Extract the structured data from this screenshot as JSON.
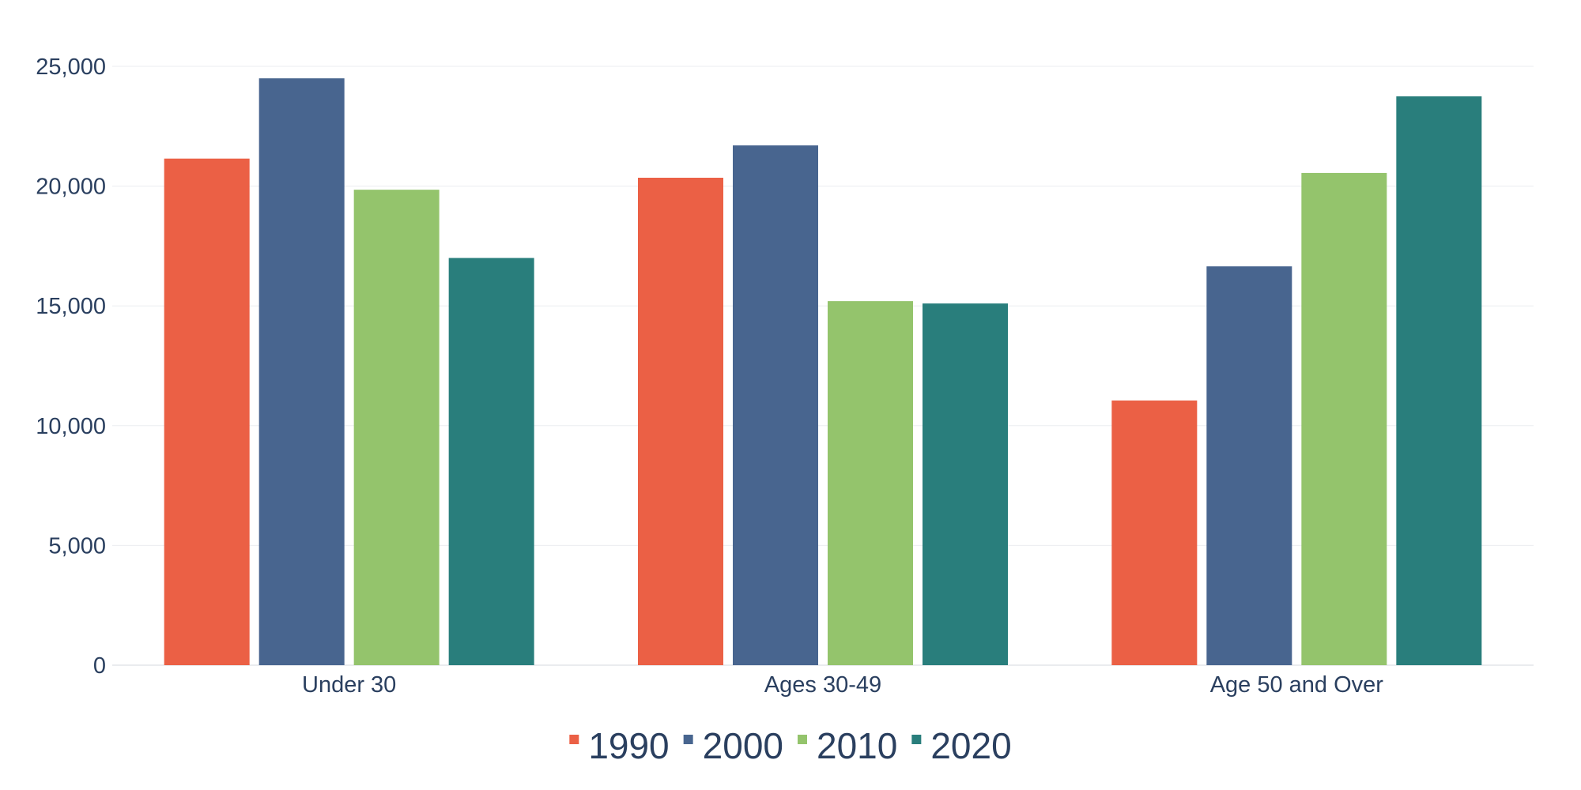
{
  "chart_data": {
    "type": "bar",
    "categories": [
      "Under 30",
      "Ages 30-49",
      "Age 50 and Over"
    ],
    "series": [
      {
        "name": "1990",
        "color": "#EB6045",
        "values": [
          21150,
          20350,
          11050
        ]
      },
      {
        "name": "2000",
        "color": "#48658F",
        "values": [
          24500,
          21700,
          16650
        ]
      },
      {
        "name": "2010",
        "color": "#94C46C",
        "values": [
          19850,
          15200,
          20550
        ]
      },
      {
        "name": "2020",
        "color": "#297E7C",
        "values": [
          17000,
          15100,
          23750
        ]
      }
    ],
    "title": "",
    "xlabel": "",
    "ylabel": "",
    "ylim": [
      0,
      25000
    ],
    "yticks": [
      0,
      5000,
      10000,
      15000,
      20000,
      25000
    ],
    "ytick_labels": [
      "0",
      "5,000",
      "10,000",
      "15,000",
      "20,000",
      "25,000"
    ],
    "grid": true,
    "legend_position": "bottom-center"
  }
}
